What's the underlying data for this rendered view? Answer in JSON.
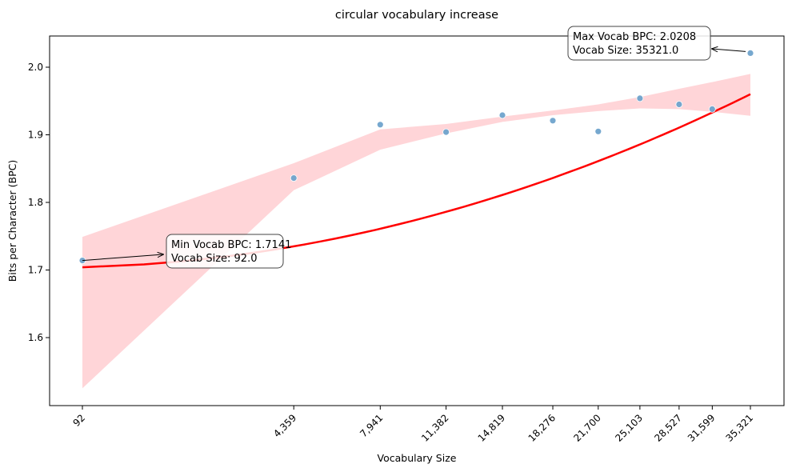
{
  "chart_data": {
    "type": "scatter",
    "title": "circular vocabulary increase",
    "xlabel": "Vocabulary Size",
    "ylabel": "Bits per Character (BPC)",
    "x_scale": "sqrt",
    "xlim": [
      0,
      38500
    ],
    "ylim": [
      1.5,
      2.045
    ],
    "x_ticks": [
      92,
      4359,
      7941,
      11382,
      14819,
      18276,
      21700,
      25103,
      28527,
      31599,
      35321
    ],
    "x_tick_labels": [
      "92",
      "4,359",
      "7,941",
      "11,382",
      "14,819",
      "18,276",
      "21,700",
      "25,103",
      "28,527",
      "31,599",
      "35,321"
    ],
    "y_ticks": [
      1.6,
      1.7,
      1.8,
      1.9,
      2.0
    ],
    "y_tick_labels": [
      "1.6",
      "1.7",
      "1.8",
      "1.9",
      "2.0"
    ],
    "series": [
      {
        "kind": "points",
        "color": "#6fa3cc",
        "x": [
          92,
          4359,
          7941,
          11382,
          14819,
          18276,
          21700,
          25103,
          28527,
          31599,
          35321
        ],
        "y": [
          1.7141,
          1.836,
          1.915,
          1.904,
          1.929,
          1.921,
          1.905,
          1.954,
          1.945,
          1.938,
          2.0208
        ]
      },
      {
        "kind": "fit-line",
        "color": "#ff0000",
        "x": [
          92,
          35321
        ],
        "y": [
          1.704,
          1.96
        ]
      }
    ],
    "confidence_band": {
      "color": "#ffb3b8",
      "x": [
        92,
        4359,
        7941,
        11382,
        14819,
        18276,
        21700,
        25103,
        28527,
        31599,
        35321
      ],
      "lower": [
        1.525,
        1.818,
        1.878,
        1.902,
        1.919,
        1.929,
        1.935,
        1.939,
        1.938,
        1.934,
        1.928
      ],
      "upper": [
        1.749,
        1.858,
        1.908,
        1.916,
        1.927,
        1.936,
        1.945,
        1.956,
        1.968,
        1.978,
        1.99
      ]
    },
    "annotations": [
      {
        "lines": [
          "Min Vocab BPC: 1.7141",
          "Vocab Size: 92.0"
        ],
        "point": [
          92,
          1.7141
        ]
      },
      {
        "lines": [
          "Max Vocab BPC: 2.0208",
          "Vocab Size: 35321.0"
        ],
        "point": [
          35321,
          2.0208
        ]
      }
    ],
    "grid": false,
    "legend": "none"
  }
}
